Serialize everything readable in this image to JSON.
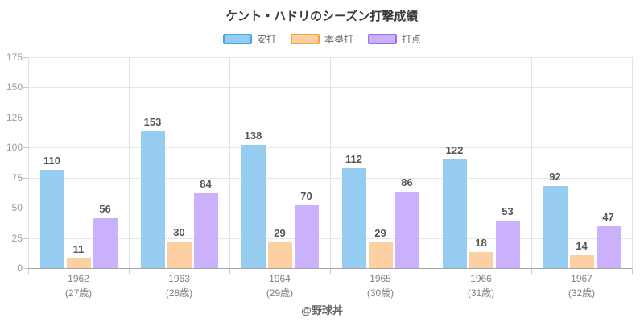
{
  "chart_data": {
    "type": "bar",
    "title": "ケント・ハドリのシーズン打撃成績",
    "footer": "@野球丼",
    "categories": [
      {
        "year": "1962",
        "age": "(27歳)"
      },
      {
        "year": "1963",
        "age": "(28歳)"
      },
      {
        "year": "1964",
        "age": "(29歳)"
      },
      {
        "year": "1965",
        "age": "(30歳)"
      },
      {
        "year": "1966",
        "age": "(31歳)"
      },
      {
        "year": "1967",
        "age": "(32歳)"
      }
    ],
    "series": [
      {
        "name": "安打",
        "values": [
          110,
          153,
          138,
          112,
          122,
          92
        ],
        "fill": "#97ccf1",
        "border": "#47a4e9"
      },
      {
        "name": "本塁打",
        "values": [
          11,
          30,
          29,
          29,
          18,
          14
        ],
        "fill": "#fcd0a1",
        "border": "#f99f40"
      },
      {
        "name": "打点",
        "values": [
          56,
          84,
          70,
          86,
          53,
          47
        ],
        "fill": "#cbb1fb",
        "border": "#9d6ef3"
      }
    ],
    "ylim": [
      0,
      175
    ],
    "ytick_labels": [
      "0",
      "25",
      "50",
      "75",
      "100",
      "125",
      "150",
      "175"
    ],
    "ytick_step": 25,
    "bar_display_scale": 0.74,
    "grid": true,
    "legend_position": "top",
    "colors": {
      "grid": "#e6e6e6",
      "axis": "#a8a8a8",
      "tick": "#c8c8c8",
      "y_label": "#9b9b9b",
      "x_label": "#7f7f7f",
      "value_label": "#555555",
      "title": "#3a3a3a",
      "legend_text": "#666666",
      "footer": "#666666"
    }
  }
}
